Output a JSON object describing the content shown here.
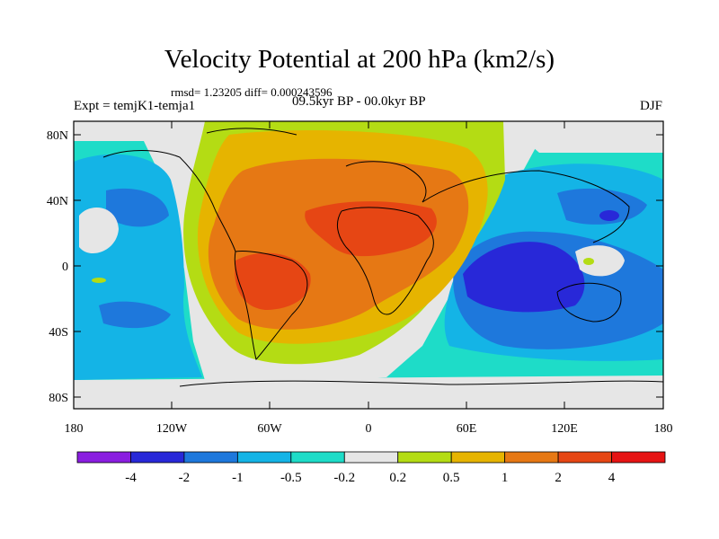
{
  "title": "Velocity Potential at 200 hPa (km2/s)",
  "stats": "rmsd= 1.23205 diff= 0.000243596",
  "experiment": "Expt = temjK1-temja1",
  "period": "09.5kyr BP - 00.0kyr BP",
  "season": "DJF",
  "lat_labels": [
    "80N",
    "40N",
    "0",
    "40S",
    "80S"
  ],
  "lon_labels": [
    "180",
    "120W",
    "60W",
    "0",
    "60E",
    "120E",
    "180"
  ],
  "colorbar": {
    "labels": [
      "-4",
      "-2",
      "-1",
      "-0.5",
      "-0.2",
      "0.2",
      "0.5",
      "1",
      "2",
      "4"
    ],
    "colors": [
      "#8a1ee0",
      "#2828d8",
      "#1e78dc",
      "#14b4e6",
      "#1edcc8",
      "#e6e6e6",
      "#b4dc14",
      "#e6b400",
      "#e67814",
      "#e64614",
      "#e61414"
    ]
  }
}
